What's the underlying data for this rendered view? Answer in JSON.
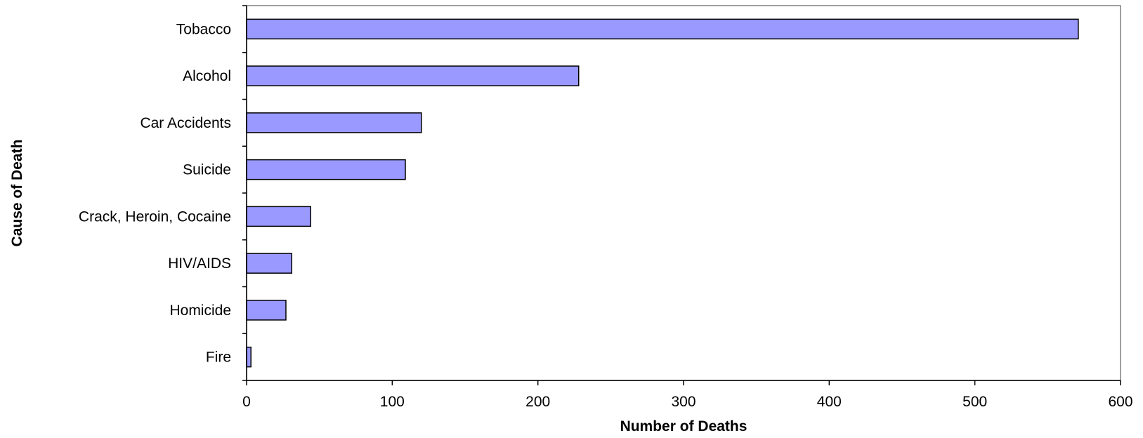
{
  "chart_data": {
    "type": "bar",
    "orientation": "horizontal",
    "categories": [
      "Tobacco",
      "Alcohol",
      "Car Accidents",
      "Suicide",
      "Crack, Heroin, Cocaine",
      "HIV/AIDS",
      "Homicide",
      "Fire"
    ],
    "values": [
      571,
      228,
      120,
      109,
      44,
      31,
      27,
      3
    ],
    "xlabel": "Number of Deaths",
    "ylabel": "Cause of Death",
    "xlim": [
      0,
      600
    ],
    "xticks": [
      "0",
      "100",
      "200",
      "300",
      "400",
      "500",
      "600"
    ],
    "grid": false,
    "legend": "none",
    "colors": {
      "bar_fill": "#9999ff",
      "bar_stroke": "#000000",
      "axis": "#000000",
      "frame": "#808080"
    }
  }
}
